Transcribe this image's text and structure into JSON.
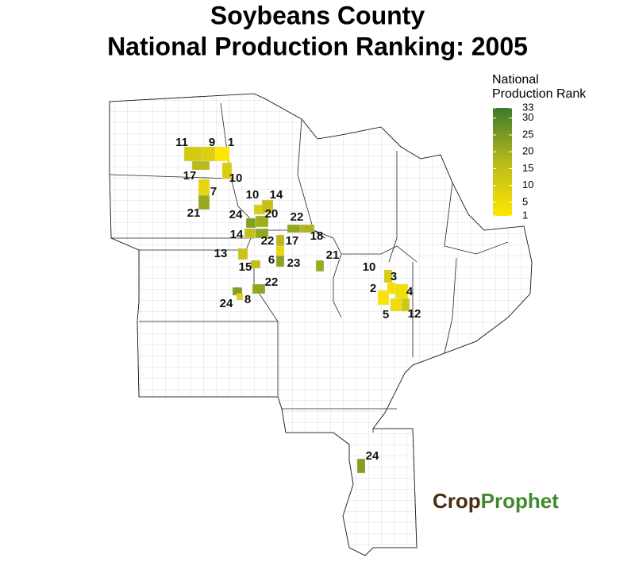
{
  "title": [
    "Soybeans County",
    "National Production Ranking: 2005"
  ],
  "legend": {
    "title": [
      "National",
      "Production Rank"
    ],
    "range": [
      1,
      33
    ],
    "ticks": [
      1,
      5,
      10,
      15,
      20,
      25,
      30,
      33
    ],
    "colors": [
      "#ffe600",
      "#b9b91c",
      "#3b7b2b"
    ]
  },
  "counties": [
    {
      "rank": 11
    },
    {
      "rank": 9
    },
    {
      "rank": 1
    },
    {
      "rank": 17
    },
    {
      "rank": 10
    },
    {
      "rank": 7
    },
    {
      "rank": 21
    },
    {
      "rank": 10
    },
    {
      "rank": 14
    },
    {
      "rank": 24
    },
    {
      "rank": 20
    },
    {
      "rank": 22
    },
    {
      "rank": 14
    },
    {
      "rank": 22
    },
    {
      "rank": 17
    },
    {
      "rank": 18
    },
    {
      "rank": 13
    },
    {
      "rank": 6
    },
    {
      "rank": 23
    },
    {
      "rank": 21
    },
    {
      "rank": 15
    },
    {
      "rank": 22
    },
    {
      "rank": 24
    },
    {
      "rank": 8
    },
    {
      "rank": 10
    },
    {
      "rank": 3
    },
    {
      "rank": 2
    },
    {
      "rank": 4
    },
    {
      "rank": 5
    },
    {
      "rank": 12
    },
    {
      "rank": 24
    }
  ],
  "logo": [
    "Crop",
    "Prophet"
  ]
}
